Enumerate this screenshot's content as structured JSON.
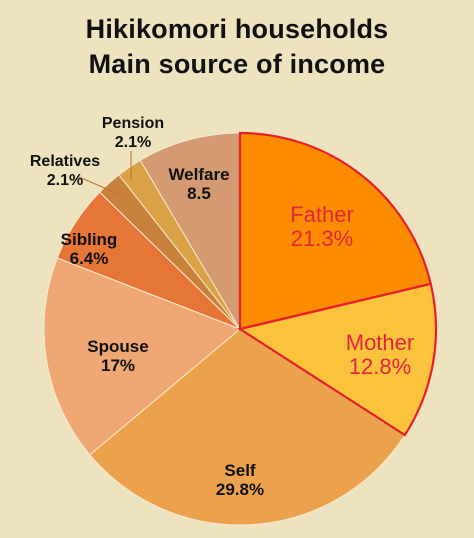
{
  "chart_data": {
    "type": "pie",
    "title": [
      "Hikikomori households",
      "Main source of income"
    ],
    "unit": "%",
    "slices": [
      {
        "name": "Father",
        "value": 21.3,
        "display": "21.3%",
        "color": "#fb8c00",
        "highlight": true,
        "label_color": "#e3263d"
      },
      {
        "name": "Mother",
        "value": 12.8,
        "display": "12.8%",
        "color": "#fbc33c",
        "highlight": true,
        "label_color": "#e3263d"
      },
      {
        "name": "Self",
        "value": 29.8,
        "display": "29.8%",
        "color": "#eca24c",
        "highlight": false,
        "label_color": "#111111"
      },
      {
        "name": "Spouse",
        "value": 17,
        "display": "17%",
        "color": "#efa774",
        "highlight": false,
        "label_color": "#111111"
      },
      {
        "name": "Sibling",
        "value": 6.4,
        "display": "6.4%",
        "color": "#e67538",
        "highlight": false,
        "label_color": "#111111"
      },
      {
        "name": "Relatives",
        "value": 2.1,
        "display": "2.1%",
        "color": "#c8823c",
        "highlight": false,
        "label_color": "#111111"
      },
      {
        "name": "Pension",
        "value": 2.1,
        "display": "2.1%",
        "color": "#daa246",
        "highlight": false,
        "label_color": "#111111"
      },
      {
        "name": "Welfare",
        "value": 8.5,
        "display": "8.5",
        "color": "#d49a72",
        "highlight": false,
        "label_color": "#111111"
      }
    ],
    "start_angle": "12 o'clock",
    "direction": "clockwise",
    "highlight_outline": "#e8202a"
  }
}
